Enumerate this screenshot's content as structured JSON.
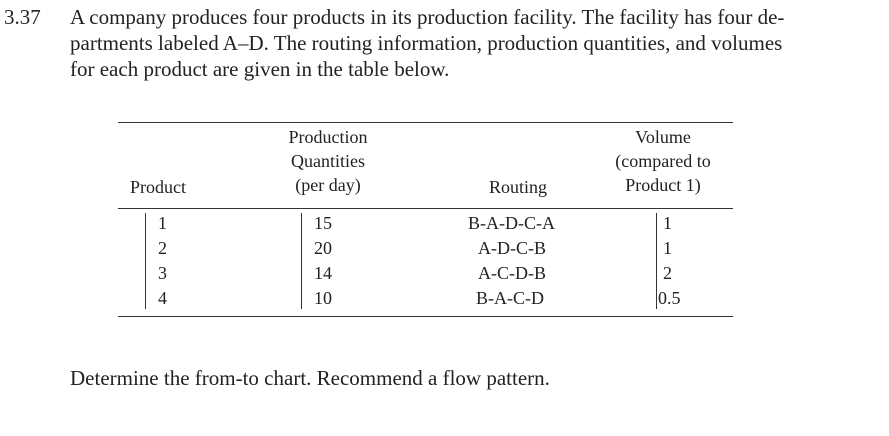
{
  "problem": {
    "number": "3.37",
    "lines": [
      "A company produces four products in its production facility. The facility has four de-",
      "partments labeled A–D. The routing information, production quantities, and volumes",
      "for each product are given in the table below."
    ]
  },
  "table": {
    "headers": {
      "product": [
        "Product"
      ],
      "quantities": [
        "Production",
        "Quantities",
        "(per day)"
      ],
      "routing": [
        "Routing"
      ],
      "volume": [
        "Volume",
        "(compared to",
        "Product 1)"
      ]
    },
    "rows": [
      {
        "product": "1",
        "quantity": "15",
        "routing": "B-A-D-C-A",
        "volume": "1"
      },
      {
        "product": "2",
        "quantity": "20",
        "routing": "A-D-C-B",
        "volume": "1"
      },
      {
        "product": "3",
        "quantity": "14",
        "routing": "A-C-D-B",
        "volume": "2"
      },
      {
        "product": "4",
        "quantity": "10",
        "routing": "B-A-C-D",
        "volume": "0.5"
      }
    ]
  },
  "footer": "Determine the from-to chart. Recommend a flow pattern."
}
